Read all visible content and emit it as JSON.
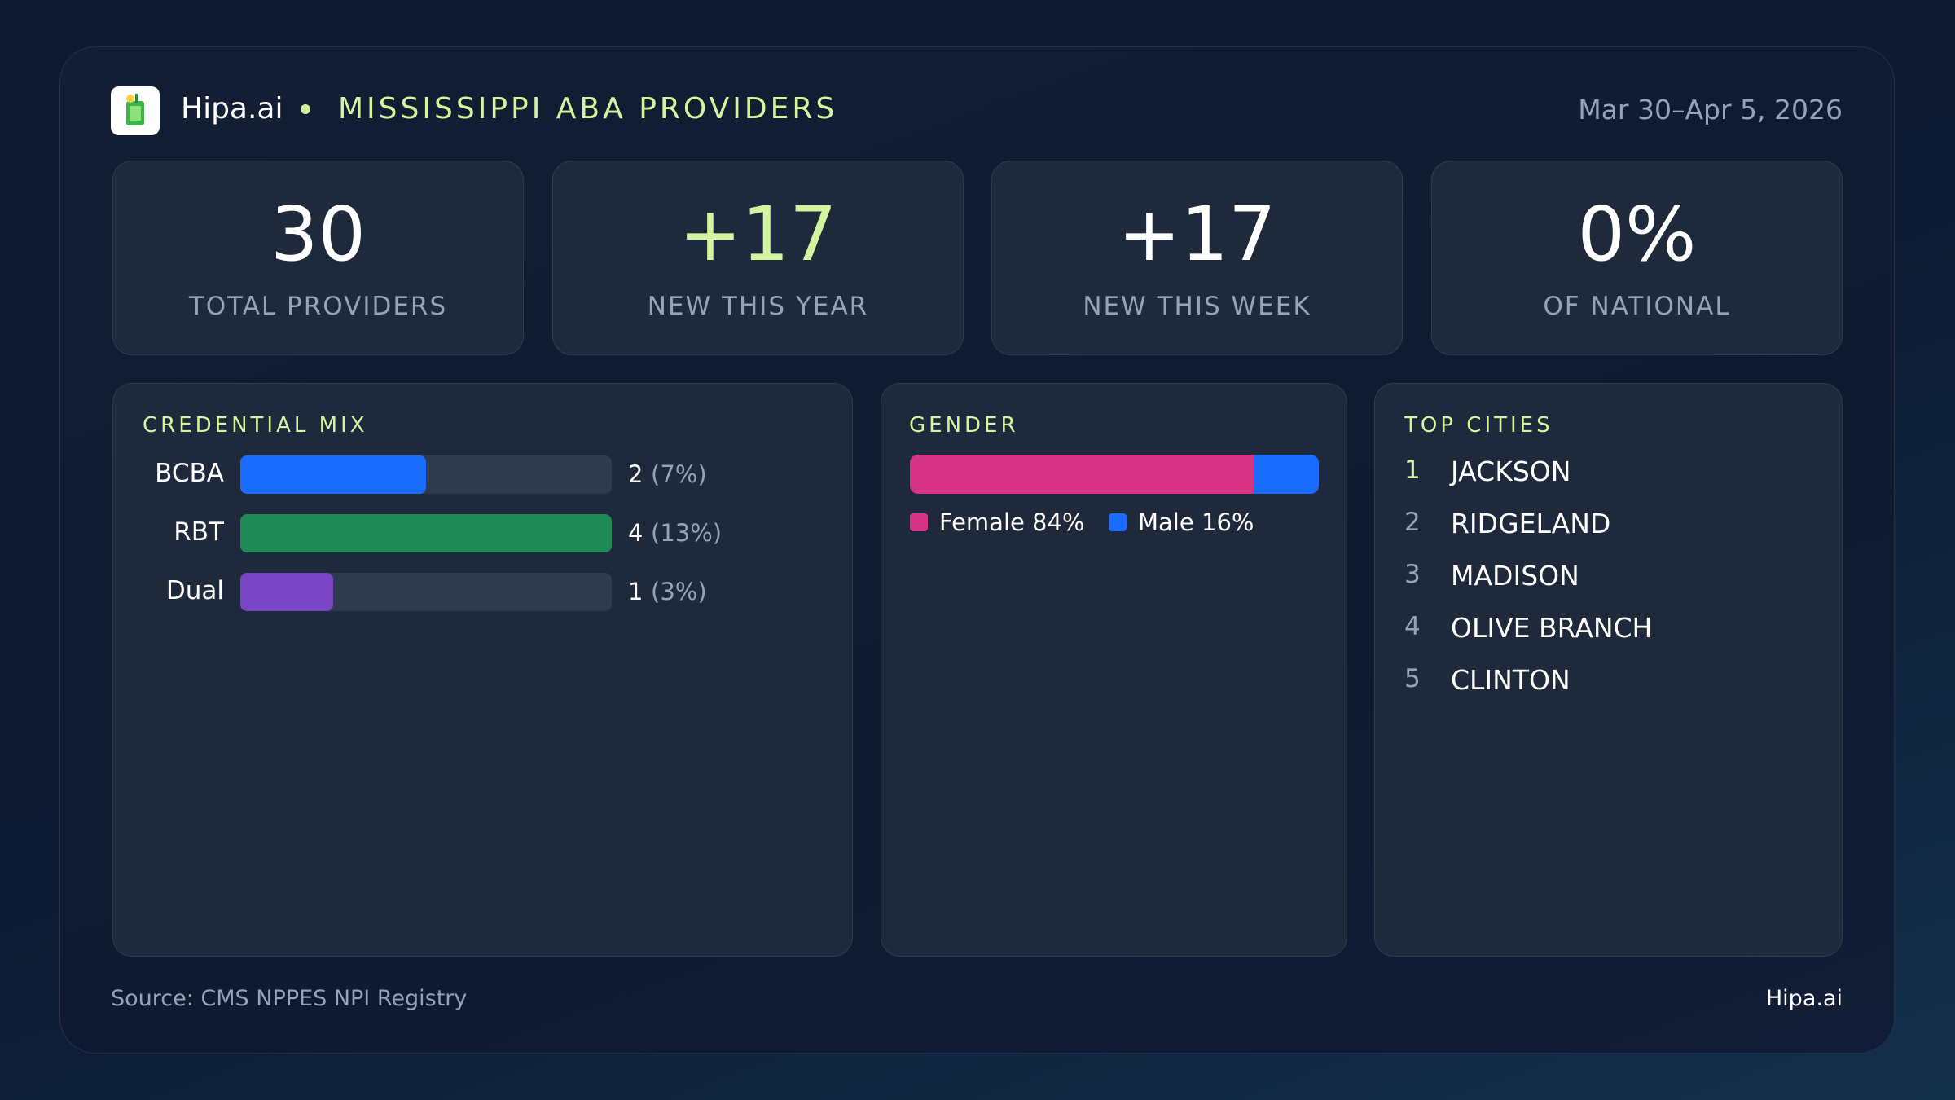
{
  "header": {
    "brand": "Hipa.ai",
    "title": "MISSISSIPPI ABA PROVIDERS",
    "date": "Mar 30–Apr 5, 2026"
  },
  "kpis": [
    {
      "value": "30",
      "label": "TOTAL PROVIDERS",
      "color": "#ffffff"
    },
    {
      "value": "+17",
      "label": "NEW THIS YEAR",
      "color": "#d4f5a0"
    },
    {
      "value": "+17",
      "label": "NEW THIS WEEK",
      "color": "#ffffff"
    },
    {
      "value": "0%",
      "label": "OF NATIONAL",
      "color": "#ffffff"
    }
  ],
  "credential_mix": {
    "title": "CREDENTIAL MIX",
    "categories": [
      "BCBA",
      "RBT",
      "Dual"
    ],
    "values": [
      2,
      4,
      1
    ],
    "value_labels": [
      "(7%)",
      "(13%)",
      "(3%)"
    ],
    "colors": [
      "#1a6cff",
      "#1e8a55",
      "#7a45c4"
    ],
    "xlim": [
      0,
      4
    ]
  },
  "gender": {
    "title": "GENDER",
    "xlim": [
      0,
      100
    ],
    "series": [
      {
        "name": "Female",
        "value": 84,
        "label": "84%",
        "color": "#d63384"
      },
      {
        "name": "Male",
        "value": 16,
        "label": "16%",
        "color": "#1a6cff"
      }
    ]
  },
  "top_cities": {
    "title": "TOP CITIES",
    "items": [
      {
        "rank": 1,
        "name": "JACKSON"
      },
      {
        "rank": 2,
        "name": "RIDGELAND"
      },
      {
        "rank": 3,
        "name": "MADISON"
      },
      {
        "rank": 4,
        "name": "OLIVE BRANCH"
      },
      {
        "rank": 5,
        "name": "CLINTON"
      }
    ]
  },
  "footer": {
    "source": "Source: CMS NPPES NPI Registry",
    "brand": "Hipa.ai"
  }
}
